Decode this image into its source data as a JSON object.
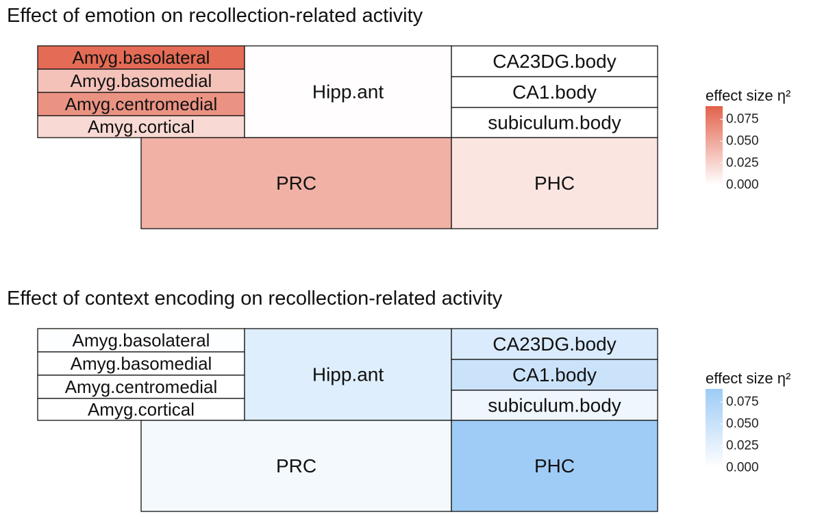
{
  "chart_data": [
    {
      "type": "heatmap",
      "title": "Effect of emotion on recollection-related activity",
      "legend": {
        "title": "effect size η²",
        "ticks": [
          0.075,
          0.05,
          0.025,
          0.0
        ],
        "tick_labels": [
          "0.075",
          "0.050",
          "0.025",
          "0.000"
        ],
        "range": [
          0,
          0.09
        ],
        "color_low": "#ffffff",
        "color_high": "#e2624b"
      },
      "regions": [
        {
          "name": "Amyg.basolateral",
          "value": 0.085
        },
        {
          "name": "Amyg.basomedial",
          "value": 0.035
        },
        {
          "name": "Amyg.centromedial",
          "value": 0.062
        },
        {
          "name": "Amyg.cortical",
          "value": 0.022
        },
        {
          "name": "Hipp.ant",
          "value": 0.001
        },
        {
          "name": "CA23DG.body",
          "value": 0.0
        },
        {
          "name": "CA1.body",
          "value": 0.0
        },
        {
          "name": "subiculum.body",
          "value": 0.0
        },
        {
          "name": "PRC",
          "value": 0.045
        },
        {
          "name": "PHC",
          "value": 0.015
        }
      ]
    },
    {
      "type": "heatmap",
      "title": "Effect of context encoding on recollection-related activity",
      "legend": {
        "title": "effect size η²",
        "ticks": [
          0.075,
          0.05,
          0.025,
          0.0
        ],
        "tick_labels": [
          "0.075",
          "0.050",
          "0.025",
          "0.000"
        ],
        "range": [
          0,
          0.09
        ],
        "color_low": "#ffffff",
        "color_high": "#9dcbf6"
      },
      "regions": [
        {
          "name": "Amyg.basolateral",
          "value": 0.002
        },
        {
          "name": "Amyg.basomedial",
          "value": 0.0
        },
        {
          "name": "Amyg.centromedial",
          "value": 0.0
        },
        {
          "name": "Amyg.cortical",
          "value": 0.0
        },
        {
          "name": "Hipp.ant",
          "value": 0.03
        },
        {
          "name": "CA23DG.body",
          "value": 0.035
        },
        {
          "name": "CA1.body",
          "value": 0.048
        },
        {
          "name": "subiculum.body",
          "value": 0.015
        },
        {
          "name": "PRC",
          "value": 0.01
        },
        {
          "name": "PHC",
          "value": 0.088
        }
      ]
    }
  ]
}
